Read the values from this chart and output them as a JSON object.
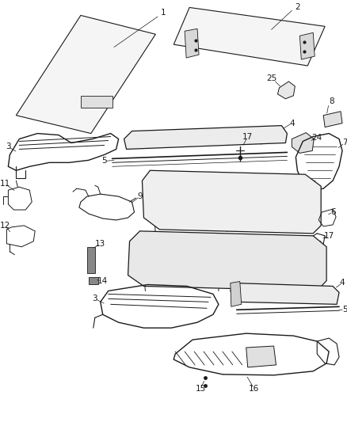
{
  "background_color": "#ffffff",
  "fig_width": 4.38,
  "fig_height": 5.33,
  "dpi": 100,
  "line_color": "#1a1a1a",
  "label_color": "#1a1a1a",
  "label_fontsize": 7.5,
  "leader_lw": 0.5,
  "part_lw": 0.8
}
